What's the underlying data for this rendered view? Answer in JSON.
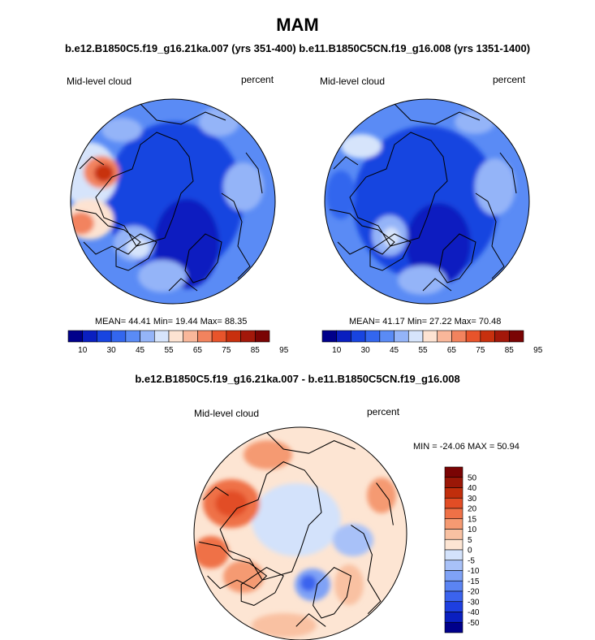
{
  "header": {
    "season": "MAM",
    "case_titles": "b.e12.B1850C5.f19_g16.21ka.007 (yrs 351-400) b.e11.B1850C5CN.f19_g16.008 (yrs 1351-1400)",
    "diff_title": "b.e12.B1850C5.f19_g16.21ka.007 - b.e11.B1850C5CN.f19_g16.008"
  },
  "panels": {
    "left": {
      "variable": "Mid-level cloud",
      "units": "percent",
      "stats": "MEAN=  44.41  Min=  19.44  Max=  88.35"
    },
    "right": {
      "variable": "Mid-level cloud",
      "units": "percent",
      "stats": "MEAN=  41.17  Min=  27.22  Max=  70.48"
    },
    "diff": {
      "variable": "Mid-level cloud",
      "units": "percent",
      "stats": "MIN = -24.06 MAX =  50.94"
    }
  },
  "colors": {
    "abs_scale": [
      "#00008b",
      "#0a1fc0",
      "#1844e0",
      "#3366ee",
      "#5a8bf5",
      "#94b4f8",
      "#d6e4fb",
      "#fde3d2",
      "#f9b79a",
      "#f2835e",
      "#e8542b",
      "#c8300e",
      "#a3180a",
      "#7a0404"
    ],
    "diff_scale": [
      "#00008b",
      "#0a1fc0",
      "#1e3fe0",
      "#3b63ee",
      "#5b84f3",
      "#7fa2f6",
      "#a8c1f8",
      "#d3e2fb",
      "#fde5d3",
      "#f9c1a2",
      "#f59a72",
      "#ef7147",
      "#e24d25",
      "#c12e0c",
      "#9b1707",
      "#7a0404"
    ],
    "coast": "#000000"
  },
  "chart_data": [
    {
      "type": "heatmap",
      "projection": "north-polar-stereographic",
      "title": "b.e12.B1850C5.f19_g16.21ka.007 (yrs 351-400)",
      "variable": "Mid-level cloud",
      "units": "percent",
      "mean": 44.41,
      "min": 19.44,
      "max": 88.35,
      "colorbar_levels": [
        10,
        20,
        30,
        40,
        45,
        50,
        55,
        60,
        65,
        70,
        75,
        80,
        85,
        90,
        95
      ],
      "colorbar_tick_labels": [
        "10",
        "30",
        "45",
        "55",
        "65",
        "75",
        "85",
        "95"
      ]
    },
    {
      "type": "heatmap",
      "projection": "north-polar-stereographic",
      "title": "b.e11.B1850C5CN.f19_g16.008 (yrs 1351-1400)",
      "variable": "Mid-level cloud",
      "units": "percent",
      "mean": 41.17,
      "min": 27.22,
      "max": 70.48,
      "colorbar_levels": [
        10,
        20,
        30,
        40,
        45,
        50,
        55,
        60,
        65,
        70,
        75,
        80,
        85,
        90,
        95
      ],
      "colorbar_tick_labels": [
        "10",
        "30",
        "45",
        "55",
        "65",
        "75",
        "85",
        "95"
      ]
    },
    {
      "type": "heatmap",
      "projection": "north-polar-stereographic",
      "title": "b.e12.B1850C5.f19_g16.21ka.007 - b.e11.B1850C5CN.f19_g16.008",
      "variable": "Mid-level cloud",
      "units": "percent",
      "min": -24.06,
      "max": 50.94,
      "colorbar_levels": [
        -50,
        -40,
        -30,
        -20,
        -15,
        -10,
        -5,
        0,
        5,
        10,
        15,
        20,
        30,
        40,
        50
      ],
      "colorbar_tick_labels": [
        "50",
        "40",
        "30",
        "20",
        "15",
        "10",
        "5",
        "0",
        "-5",
        "-10",
        "-15",
        "-20",
        "-30",
        "-40",
        "-50"
      ]
    }
  ]
}
